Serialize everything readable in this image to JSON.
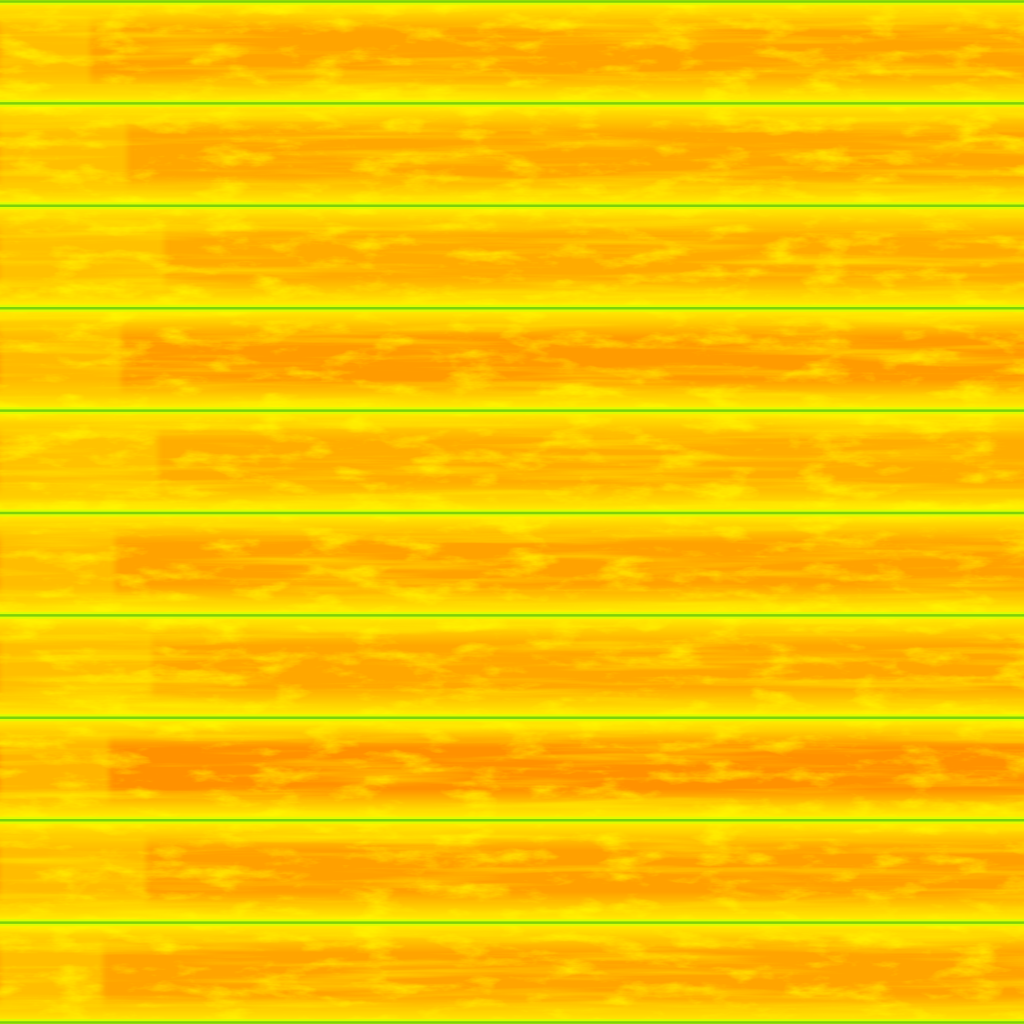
{
  "texture": {
    "subject": "wood-plank-texture",
    "plank_count": 10,
    "colors": {
      "edge_yellow": "#fff200",
      "mid_yellow": "#ffd400",
      "light_orange": "#ffb800",
      "orange": "#ff9e00",
      "deep_orange": "#ff8a00",
      "seam_green": "#7dd10a",
      "seam_glow": "#d8ff00"
    },
    "plank_warmth": [
      0.55,
      0.45,
      0.35,
      0.75,
      0.3,
      0.6,
      0.45,
      0.9,
      0.65,
      0.55
    ]
  }
}
